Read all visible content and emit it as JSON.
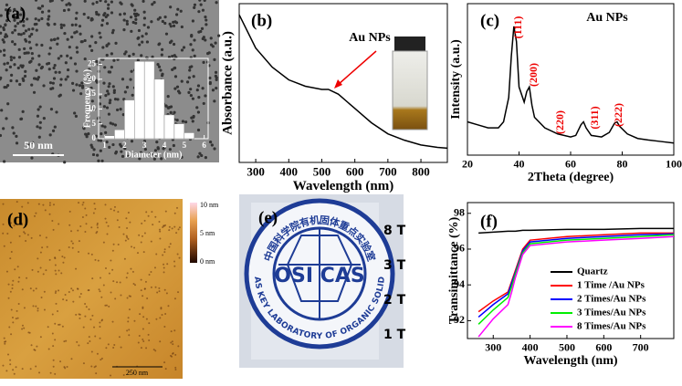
{
  "chart_data": [
    {
      "type": "histogram",
      "panel_label": "(a)",
      "scale_bar": "50 nm",
      "x_label": "Diameter (nm)",
      "y_label": "Frequency (%)",
      "bins": [
        1,
        1.5,
        2,
        2.5,
        3,
        3.5,
        4,
        4.5,
        5,
        5.5
      ],
      "counts": [
        1,
        3,
        13,
        26,
        26,
        20,
        8,
        5,
        2
      ],
      "color": "#ffffff",
      "xlim": [
        0.7,
        6.2
      ],
      "xticks": [
        1,
        2,
        3,
        4,
        5,
        6
      ],
      "ylim": [
        0,
        27
      ],
      "yticks": [
        0,
        5,
        10,
        15,
        20,
        25
      ]
    },
    {
      "type": "line",
      "panel_label": "(b)",
      "annotation": "Au NPs",
      "x_label": "Wavelength (nm)",
      "y_label": "Absorbance (a.u.)",
      "x": [
        250,
        300,
        350,
        400,
        450,
        500,
        520,
        550,
        600,
        650,
        700,
        750,
        800,
        850,
        880
      ],
      "values": [
        0.93,
        0.72,
        0.6,
        0.52,
        0.48,
        0.46,
        0.46,
        0.43,
        0.34,
        0.25,
        0.18,
        0.14,
        0.11,
        0.095,
        0.09
      ],
      "color": "#000000",
      "xlim": [
        250,
        880
      ],
      "xticks": [
        300,
        400,
        500,
        600,
        700,
        800
      ],
      "ylim": [
        0,
        1
      ]
    },
    {
      "type": "line",
      "panel_label": "(c)",
      "annotation": "Au NPs",
      "peak_labels": [
        "(111)",
        "(200)",
        "(220)",
        "(311)",
        "(222)"
      ],
      "x_label": "2Theta (degree)",
      "y_label": "Intensity (a.u.)",
      "x": [
        20,
        24,
        28,
        32,
        34,
        36,
        37,
        38,
        39,
        40,
        42,
        43,
        44,
        45,
        46,
        50,
        55,
        60,
        62,
        64,
        65,
        66,
        68,
        72,
        75,
        77,
        78,
        79,
        82,
        86,
        90,
        95,
        100
      ],
      "values": [
        22,
        20,
        18,
        18,
        22,
        38,
        65,
        85,
        75,
        45,
        35,
        42,
        45,
        33,
        25,
        18,
        14,
        12,
        13,
        20,
        22,
        18,
        13,
        12,
        15,
        21,
        22,
        19,
        14,
        11,
        10,
        9,
        8
      ],
      "color": "#000000",
      "xlim": [
        20,
        100
      ],
      "xticks": [
        20,
        40,
        60,
        80,
        100
      ],
      "ylim": [
        0,
        100
      ]
    },
    {
      "type": "image",
      "panel_label": "(d)",
      "colorbar_labels": [
        "10 nm",
        "5 nm",
        "0 nm"
      ],
      "scale_bar": "250 nm"
    },
    {
      "type": "image",
      "panel_label": "(e)",
      "logo_text": "OSI CAS",
      "logo_top": "中国科学院有机固体重点实验室",
      "logo_bottom": "CAS KEY LABORATORY OF ORGANIC SOLIDS",
      "side_labels": [
        "8 T",
        "3 T",
        "2 T",
        "1 T"
      ]
    },
    {
      "type": "line",
      "panel_label": "(f)",
      "x_label": "Wavelength (nm)",
      "y_label": "Transimittance (%)",
      "x": [
        260,
        300,
        340,
        350,
        360,
        380,
        400,
        500,
        600,
        700,
        790
      ],
      "series": [
        {
          "name": "Quartz",
          "color": "#000000",
          "values": [
            96.9,
            96.95,
            97,
            97,
            97,
            97.05,
            97.05,
            97.1,
            97.1,
            97.15,
            97.15
          ]
        },
        {
          "name": "1 Time  /Au NPs",
          "color": "#ff0000",
          "values": [
            92.5,
            93.1,
            93.6,
            94.2,
            94.8,
            96.0,
            96.5,
            96.7,
            96.8,
            96.9,
            96.9
          ]
        },
        {
          "name": "2 Times/Au NPs",
          "color": "#0000ff",
          "values": [
            92.2,
            92.9,
            93.5,
            94.1,
            94.7,
            95.9,
            96.4,
            96.6,
            96.7,
            96.8,
            96.85
          ]
        },
        {
          "name": "3 Times/Au NPs",
          "color": "#00ee00",
          "values": [
            91.8,
            92.6,
            93.3,
            93.9,
            94.6,
            95.8,
            96.3,
            96.5,
            96.6,
            96.7,
            96.8
          ]
        },
        {
          "name": "8 Times/Au NPs",
          "color": "#ff00ff",
          "values": [
            91.1,
            92.1,
            92.9,
            93.6,
            94.4,
            95.7,
            96.2,
            96.4,
            96.5,
            96.6,
            96.7
          ]
        }
      ],
      "xlim": [
        230,
        790
      ],
      "xticks": [
        300,
        400,
        500,
        600,
        700
      ],
      "ylim": [
        91,
        98.6
      ],
      "yticks": [
        92,
        94,
        96,
        98
      ],
      "legend": "lower right"
    }
  ]
}
